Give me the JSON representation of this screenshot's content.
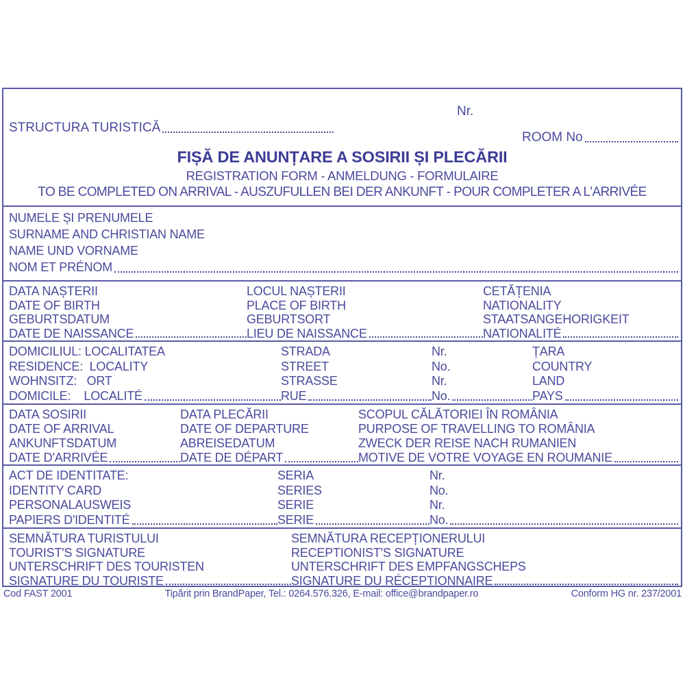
{
  "ink_color": "#4a4a9e",
  "border_color": "#5858a6",
  "header": {
    "nr": "Nr.",
    "structura": "STRUCTURA TURISTICĂ",
    "room": "ROOM No",
    "title": "FIȘĂ DE ANUNȚARE A SOSIRII ȘI PLECĂRII",
    "subtitle": "REGISTRATION FORM - ANMELDUNG - FORMULAIRE",
    "instruction": "TO BE COMPLETED ON ARRIVAL - AUSZUFULLEN BEI DER ANKUNFT - POUR COMPLETER A L'ARRIVÉE"
  },
  "name_section": {
    "ro": "NUMELE ȘI PRENUMELE",
    "en": "SURNAME AND CHRISTIAN NAME",
    "de": "NAME UND VORNAME",
    "fr": "NOM ET PRÉNOM"
  },
  "birth_section": {
    "date": {
      "ro": "DATA NAȘTERII",
      "en": "DATE OF BIRTH",
      "de": "GEBURTSDATUM",
      "fr": "DATE DE NAISSANCE"
    },
    "place": {
      "ro": "LOCUL NAȘTERII",
      "en": "PLACE OF BIRTH",
      "de": "GEBURTSORT",
      "fr": "LIEU DE NAISSANCE"
    },
    "citizenship": {
      "ro": "CETĂȚENIA",
      "en": "NATIONALITY",
      "de": "STAATSANGEHORIGKEIT",
      "fr": "NATIONALITÉ"
    }
  },
  "residence_section": {
    "locality": {
      "ro": "DOMICILIUL: LOCALITATEA",
      "en": "RESIDENCE:  LOCALITY",
      "de": "WOHNSITZ:   ORT",
      "fr": "DOMICILE:    LOCALITÉ"
    },
    "street": {
      "ro": "STRADA",
      "en": "STREET",
      "de": "STRASSE",
      "fr": "RUE"
    },
    "number": {
      "ro": "Nr.",
      "en": "No.",
      "de": "Nr.",
      "fr": "No."
    },
    "country": {
      "ro": "ȚARA",
      "en": "COUNTRY",
      "de": "LAND",
      "fr": "PAYS"
    }
  },
  "travel_section": {
    "arrival": {
      "ro": "DATA SOSIRII",
      "en": "DATE OF ARRIVAL",
      "de": "ANKUNFTSDATUM",
      "fr": "DATE D'ARRIVÉE"
    },
    "departure": {
      "ro": "DATA PLECĂRII",
      "en": "DATE OF DEPARTURE",
      "de": "ABREISEDATUM",
      "fr": "DATE DE DÉPART"
    },
    "purpose": {
      "ro": "SCOPUL CĂLĂTORIEI ÎN ROMÂNIA",
      "en": "PURPOSE OF TRAVELLING TO ROMÂNIA",
      "de": "ZWECK DER REISE NACH RUMANIEN",
      "fr": "MOTIVE DE VOTRE VOYAGE EN ROUMANIE"
    }
  },
  "id_section": {
    "document": {
      "ro": "ACT DE IDENTITATE:",
      "en": "IDENTITY CARD",
      "de": "PERSONALAUSWEIS",
      "fr": "PAPIERS D'IDENTITÉ"
    },
    "series": {
      "ro": "SERIA",
      "en": "SERIES",
      "de": "SERIE",
      "fr": "SERIE"
    },
    "number": {
      "ro": "Nr.",
      "en": "No.",
      "de": "Nr.",
      "fr": "No."
    }
  },
  "signature_section": {
    "tourist": {
      "ro": "SEMNĂTURA TURISTULUI",
      "en": "TOURIST'S SIGNATURE",
      "de": "UNTERSCHRIFT DES TOURISTEN",
      "fr": "SIGNATURE DU TOURISTE"
    },
    "receptionist": {
      "ro": "SEMNĂTURA RECEPȚIONERULUI",
      "en": "RECEPTIONIST'S SIGNATURE",
      "de": "UNTERSCHRIFT DES EMPFANGSCHEPS",
      "fr": "SIGNATURE DU RÉCEPTIONNAIRE"
    }
  },
  "footer": {
    "left": "Cod FAST 2001",
    "center": "Tipărit prin BrandPaper, Tel.: 0264.576.326, E-mail: office@brandpaper.ro",
    "right": "Conform HG nr. 237/2001"
  }
}
